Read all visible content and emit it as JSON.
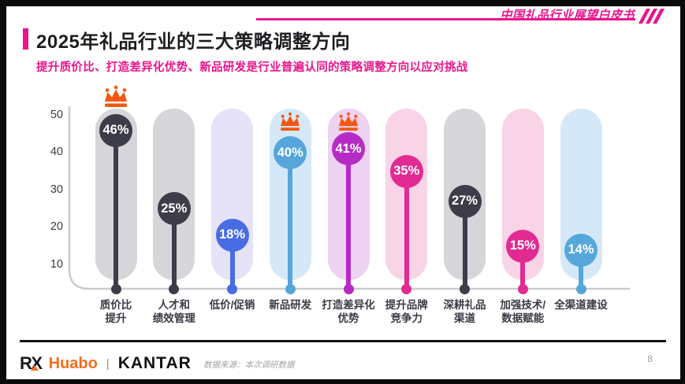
{
  "header": {
    "brand_text": "中国礼品行业展望白皮书"
  },
  "page": {
    "title": "2025年礼品行业的三大策略调整方向",
    "subtitle": "提升质价比、打造差异化优势、新品研发是行业普遍认同的策略调整方向以应对挑战",
    "page_number": "8"
  },
  "chart_data": {
    "type": "bar",
    "variant": "lollipop-capsule",
    "title": "",
    "xlabel": "",
    "ylabel": "",
    "ylim": [
      0,
      52
    ],
    "y_ticks": [
      50,
      40,
      30,
      20,
      10
    ],
    "grid": false,
    "legend": false,
    "categories": [
      "质价比提升",
      "人才和绩效管理",
      "低价/促销",
      "新品研发",
      "打造差异化优势",
      "提升品牌竞争力",
      "深耕礼品渠道",
      "加强技术/数据赋能",
      "全渠道建设"
    ],
    "values": [
      46,
      25,
      18,
      40,
      41,
      35,
      27,
      15,
      14
    ],
    "crown_color": "#f4570e",
    "axis_color": "#cbcbd0",
    "bars": [
      {
        "label_lines": [
          "质价比",
          "提升"
        ],
        "value": 46,
        "value_label": "46%",
        "circle_color": "#3d3d49",
        "pill_color": "#d6d6da",
        "crown": "above"
      },
      {
        "label_lines": [
          "人才和",
          "绩效管理"
        ],
        "value": 25,
        "value_label": "25%",
        "circle_color": "#3d3d49",
        "pill_color": "#d6d6da",
        "crown": null
      },
      {
        "label_lines": [
          "低价/促销"
        ],
        "value": 18,
        "value_label": "18%",
        "circle_color": "#4a6ce2",
        "pill_color": "#e6e2f8",
        "crown": null
      },
      {
        "label_lines": [
          "新品研发"
        ],
        "value": 40,
        "value_label": "40%",
        "circle_color": "#55a7db",
        "pill_color": "#d5e8f7",
        "crown": "top"
      },
      {
        "label_lines": [
          "打造差异化",
          "优势"
        ],
        "value": 41,
        "value_label": "41%",
        "circle_color": "#b62bc5",
        "pill_color": "#eed2f1",
        "crown": "top"
      },
      {
        "label_lines": [
          "提升品牌",
          "竞争力"
        ],
        "value": 35,
        "value_label": "35%",
        "circle_color": "#e22a92",
        "pill_color": "#f8d4e6",
        "crown": null
      },
      {
        "label_lines": [
          "深耕礼品",
          "渠道"
        ],
        "value": 27,
        "value_label": "27%",
        "circle_color": "#3d3d49",
        "pill_color": "#d6d6da",
        "crown": null
      },
      {
        "label_lines": [
          "加强技术/",
          "数据赋能"
        ],
        "value": 15,
        "value_label": "15%",
        "circle_color": "#e22a92",
        "pill_color": "#f8d4e6",
        "crown": null
      },
      {
        "label_lines": [
          "全渠道建设"
        ],
        "value": 14,
        "value_label": "14%",
        "circle_color": "#55a7db",
        "pill_color": "#d5e8f7",
        "crown": null
      }
    ]
  },
  "footer": {
    "logo_rx": "RX",
    "logo_huabo": "Huabo",
    "logo_separator": "|",
    "logo_kantar": "KANTAR",
    "source_text": "数据来源：本次调研数据"
  },
  "colors": {
    "accent_pink": "#e9158c",
    "crown_orange": "#f4570e",
    "huabo_orange": "#f26f21"
  }
}
